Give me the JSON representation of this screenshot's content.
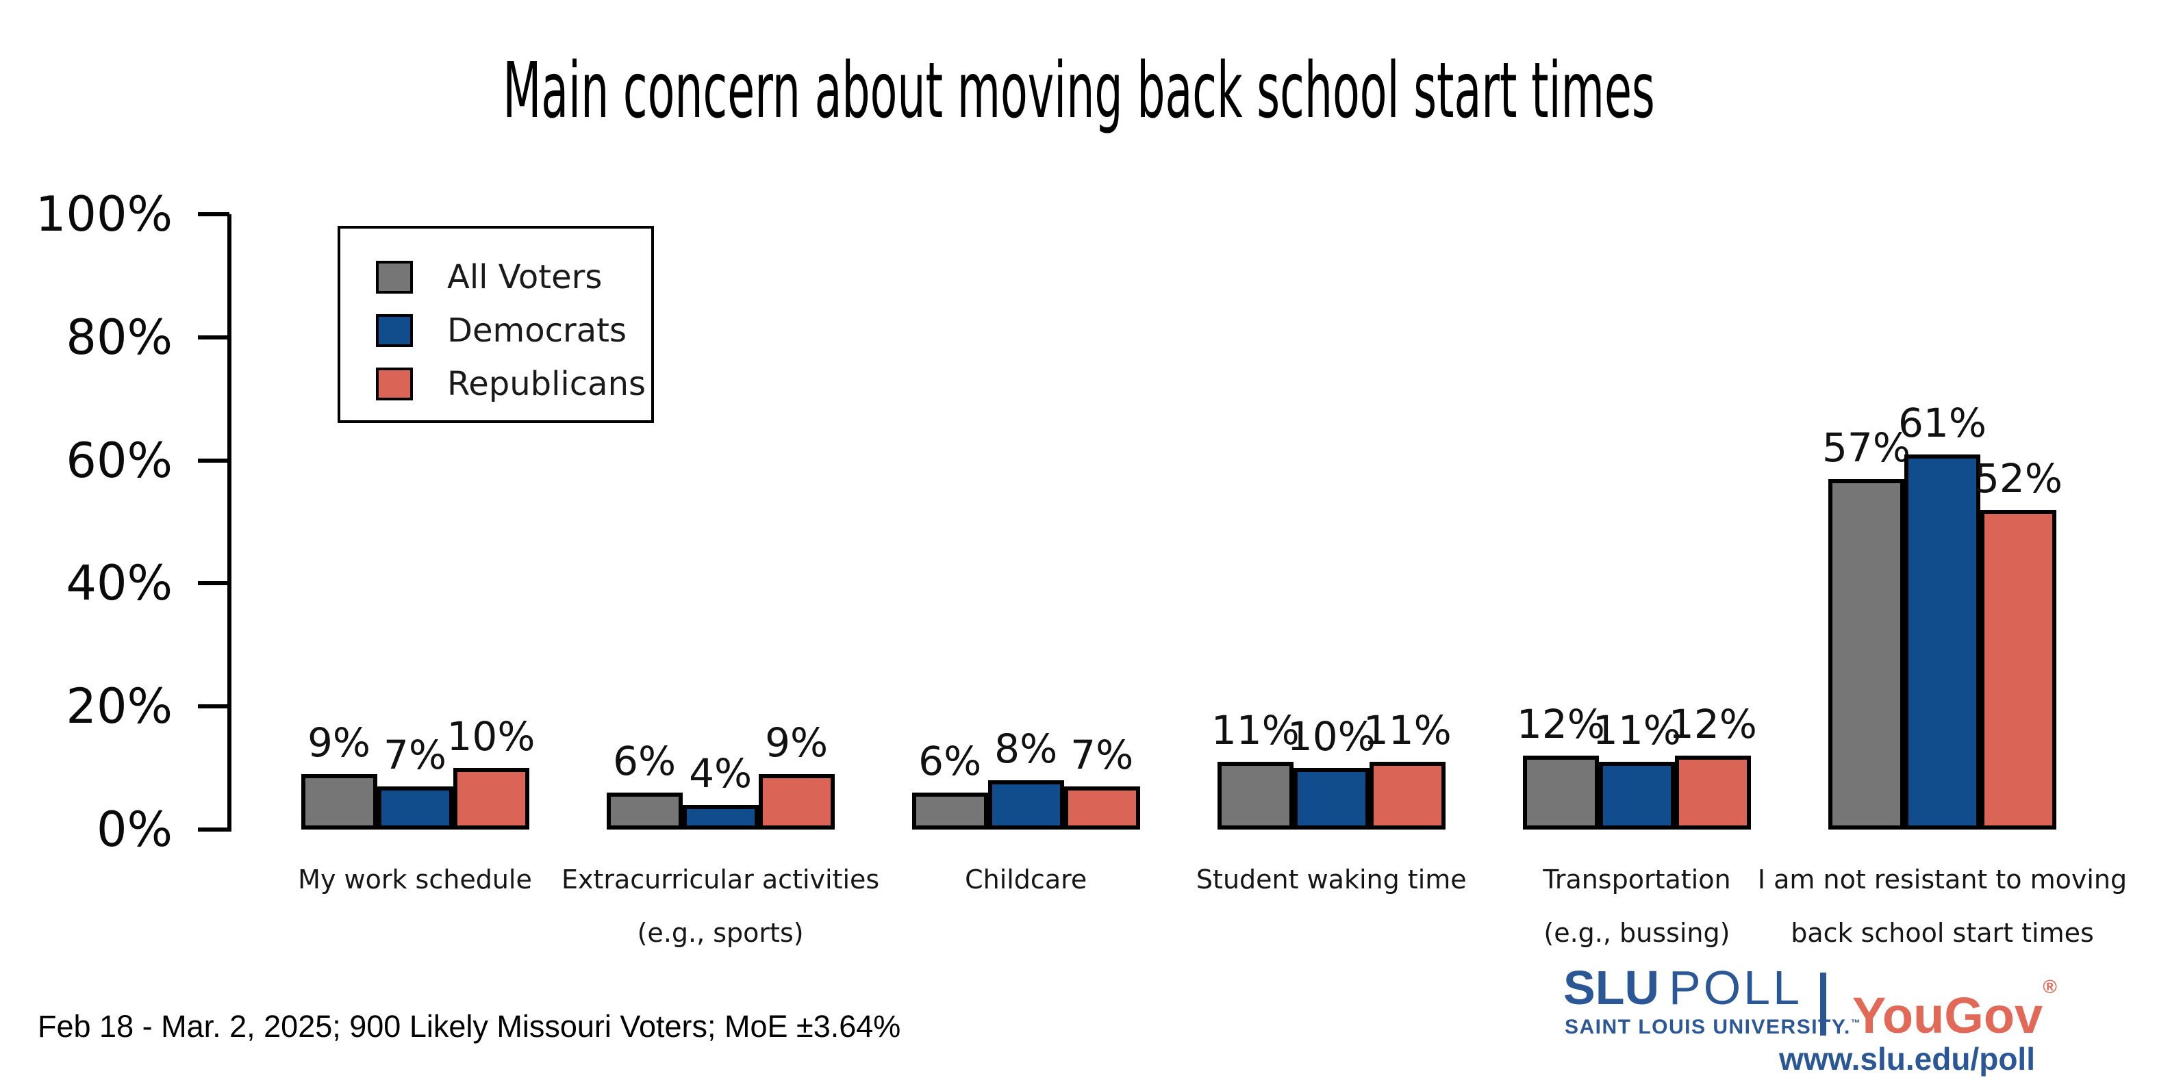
{
  "title": "Main concern about moving back school start times",
  "footer_note": "Feb 18 - Mar. 2, 2025; 900 Likely Missouri Voters; MoE ±3.64%",
  "y_axis": {
    "tick_labels": [
      "0%",
      "20%",
      "40%",
      "60%",
      "80%",
      "100%"
    ]
  },
  "legend": {
    "items": [
      {
        "label": "All Voters",
        "color": "#767676"
      },
      {
        "label": "Democrats",
        "color": "#114C8C"
      },
      {
        "label": "Republicans",
        "color": "#DA6455"
      }
    ]
  },
  "chart_data": {
    "type": "bar",
    "title": "Main concern about moving back school start times",
    "categories": [
      [
        "My work schedule"
      ],
      [
        "Extracurricular activities",
        "(e.g., sports)"
      ],
      [
        "Childcare"
      ],
      [
        "Student waking time"
      ],
      [
        "Transportation",
        "(e.g., bussing)"
      ],
      [
        "I am not resistant to moving",
        "back school start times"
      ]
    ],
    "series": [
      {
        "name": "All Voters",
        "color": "#767676",
        "values": [
          9,
          6,
          6,
          11,
          12,
          57
        ]
      },
      {
        "name": "Democrats",
        "color": "#114C8C",
        "values": [
          7,
          4,
          8,
          10,
          11,
          61
        ]
      },
      {
        "name": "Republicans",
        "color": "#DA6455",
        "values": [
          10,
          9,
          7,
          11,
          12,
          52
        ]
      }
    ],
    "value_suffix": "%",
    "ylabel": "",
    "xlabel": "",
    "ylim": [
      0,
      100
    ],
    "yticks": [
      0,
      20,
      40,
      60,
      80,
      100
    ],
    "grid": false,
    "legend_position": "upper-left",
    "bar_outline_color": "#000000"
  },
  "branding": {
    "slu_strong": "SLU",
    "slu_rest": "POLL",
    "slu_subline": "SAINT LOUIS UNIVERSITY.",
    "slu_tm": "™",
    "partner": "YouGov",
    "partner_reg": "®",
    "url": "www.slu.edu/poll",
    "slu_blue": "#2B5797",
    "yougov_red": "#E26857"
  }
}
